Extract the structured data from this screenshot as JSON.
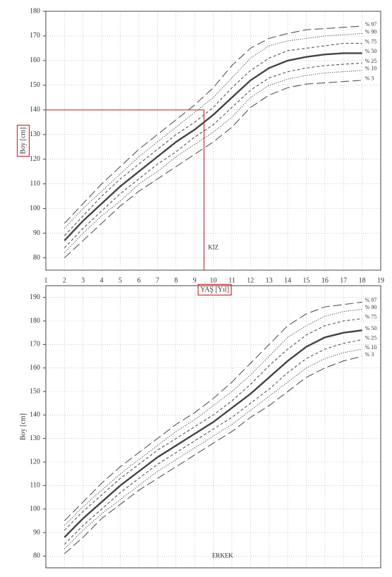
{
  "chart_data": [
    {
      "type": "line",
      "annotation": "KIZ",
      "y_label": "Boy [cm]",
      "x_label": "YAŞ [Yıl]",
      "label_box_color": "#d32f2f",
      "grid": true,
      "xtick_labels": true,
      "xlim": [
        1,
        19
      ],
      "xticks": [
        1,
        2,
        3,
        4,
        5,
        6,
        7,
        8,
        9,
        10,
        11,
        12,
        13,
        14,
        15,
        16,
        17,
        18,
        19
      ],
      "ylim": [
        75,
        180
      ],
      "yticks": [
        80,
        90,
        100,
        110,
        120,
        130,
        140,
        150,
        160,
        170,
        180
      ],
      "reference": {
        "x": 9.5,
        "y": 140,
        "color": "#d32f2f"
      },
      "x": [
        2,
        3,
        4,
        5,
        6,
        7,
        8,
        9,
        10,
        11,
        12,
        13,
        14,
        15,
        16,
        17,
        18
      ],
      "series": [
        {
          "name": "% 97",
          "color": "#555555",
          "dash": "long",
          "values": [
            94,
            102,
            110,
            117,
            124,
            130,
            136,
            142,
            149,
            158,
            165,
            169,
            171,
            172.5,
            173,
            173.5,
            174
          ]
        },
        {
          "name": "% 90",
          "color": "#555555",
          "dash": "dotted",
          "values": [
            92,
            100,
            107,
            114,
            121,
            127,
            133,
            139,
            145,
            153,
            161,
            166,
            168,
            169,
            170,
            170.5,
            171
          ]
        },
        {
          "name": "% 75",
          "color": "#555555",
          "dash": "dashed",
          "values": [
            89,
            97,
            105,
            112,
            118,
            124,
            130,
            135,
            141,
            149,
            156,
            161,
            164,
            165,
            166,
            167,
            167
          ]
        },
        {
          "name": "% 50",
          "color": "#444444",
          "dash": "solid",
          "values": [
            87,
            95,
            102,
            109,
            115,
            121,
            127,
            132,
            138,
            145,
            152,
            157,
            160,
            161.5,
            162.5,
            163,
            163
          ]
        },
        {
          "name": "% 25",
          "color": "#555555",
          "dash": "dashed",
          "values": [
            84,
            92,
            99,
            106,
            112,
            118,
            123,
            129,
            134,
            141,
            148,
            153,
            155.5,
            157,
            158,
            158.5,
            159
          ]
        },
        {
          "name": "% 10",
          "color": "#555555",
          "dash": "dotted",
          "values": [
            82,
            90,
            97,
            103,
            110,
            115,
            121,
            126,
            131,
            137,
            145,
            150,
            152.5,
            154,
            155,
            155.5,
            156
          ]
        },
        {
          "name": "% 3",
          "color": "#555555",
          "dash": "long",
          "values": [
            80,
            87,
            94,
            101,
            107,
            112,
            117,
            122,
            127,
            133,
            141,
            146,
            149,
            150.5,
            151,
            151.5,
            152
          ]
        }
      ]
    },
    {
      "type": "line",
      "annotation": "ERKEK",
      "y_label": "Boy [cm]",
      "grid": true,
      "xtick_labels": false,
      "xlim": [
        1,
        19
      ],
      "xticks": [
        1,
        2,
        3,
        4,
        5,
        6,
        7,
        8,
        9,
        10,
        11,
        12,
        13,
        14,
        15,
        16,
        17,
        18,
        19
      ],
      "ylim": [
        75,
        195
      ],
      "yticks": [
        80,
        90,
        100,
        110,
        120,
        130,
        140,
        150,
        160,
        170,
        180,
        190
      ],
      "x": [
        2,
        3,
        4,
        5,
        6,
        7,
        8,
        9,
        10,
        11,
        12,
        13,
        14,
        15,
        16,
        17,
        18
      ],
      "series": [
        {
          "name": "% 97",
          "color": "#555555",
          "dash": "long",
          "values": [
            95,
            103,
            111,
            118,
            124,
            130,
            136,
            141,
            147,
            154,
            162,
            170,
            178,
            183,
            186,
            187,
            188
          ]
        },
        {
          "name": "% 90",
          "color": "#555555",
          "dash": "dotted",
          "values": [
            93,
            101,
            108,
            115,
            121,
            127,
            133,
            138,
            144,
            150,
            157,
            165,
            173,
            178,
            182,
            184,
            185
          ]
        },
        {
          "name": "% 75",
          "color": "#555555",
          "dash": "dashed",
          "values": [
            91,
            99,
            106,
            113,
            119,
            125,
            130,
            135,
            140,
            146,
            153,
            161,
            168,
            174,
            178,
            180,
            181
          ]
        },
        {
          "name": "% 50",
          "color": "#444444",
          "dash": "solid",
          "values": [
            88,
            96,
            103,
            110,
            116,
            122,
            127,
            132,
            137,
            143,
            149,
            156,
            163,
            169,
            173,
            175,
            176
          ]
        },
        {
          "name": "% 25",
          "color": "#555555",
          "dash": "dashed",
          "values": [
            85,
            93,
            100,
            107,
            113,
            119,
            124,
            129,
            134,
            139,
            145,
            151,
            158,
            164,
            168,
            170.5,
            172
          ]
        },
        {
          "name": "% 10",
          "color": "#555555",
          "dash": "dotted",
          "values": [
            83,
            91,
            98,
            104,
            110,
            116,
            121,
            126,
            131,
            136,
            142,
            148,
            154,
            160,
            164,
            166.5,
            168
          ]
        },
        {
          "name": "% 3",
          "color": "#555555",
          "dash": "long",
          "values": [
            81,
            88,
            96,
            102,
            108,
            113,
            118,
            123,
            128,
            133,
            139,
            144,
            150,
            156,
            160,
            163,
            165
          ]
        }
      ]
    }
  ]
}
